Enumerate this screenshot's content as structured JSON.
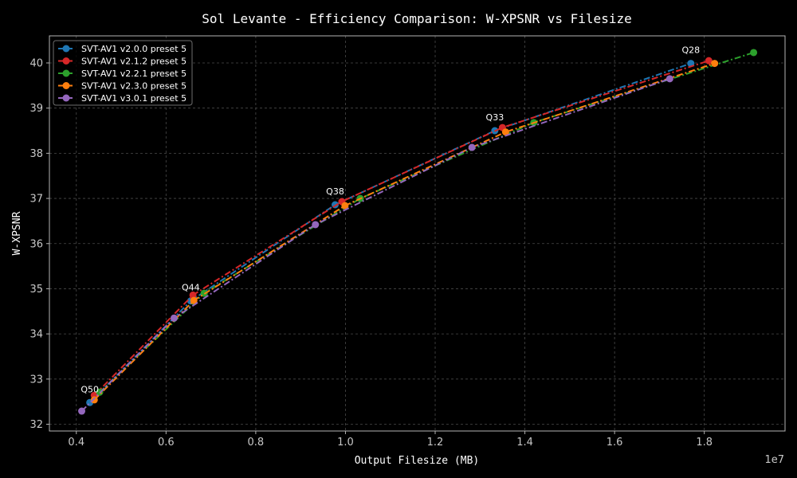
{
  "chart_data": {
    "type": "line",
    "title": "Sol Levante - Efficiency Comparison: W-XPSNR vs Filesize",
    "xlabel": "Output Filesize (MB)",
    "ylabel": "W-XPSNR",
    "x_offset_label": "1e7",
    "xlim": [
      3400000,
      19800000
    ],
    "ylim": [
      31.85,
      40.6
    ],
    "xticks": [
      4000000,
      6000000,
      8000000,
      10000000,
      12000000,
      14000000,
      16000000,
      18000000
    ],
    "xtick_labels": [
      "0.4",
      "0.6",
      "0.8",
      "1.0",
      "1.2",
      "1.4",
      "1.6",
      "1.8"
    ],
    "yticks": [
      32,
      33,
      34,
      35,
      36,
      37,
      38,
      39,
      40
    ],
    "ytick_labels": [
      "32",
      "33",
      "34",
      "35",
      "36",
      "37",
      "38",
      "39",
      "40"
    ],
    "grid": true,
    "legend_position": "top-left",
    "background_color": "#000000",
    "text_color": "#ffffff",
    "tick_color": "#c8c8c8",
    "grid_color": "#4a4a4a",
    "series": [
      {
        "name": "SVT-AV1 v2.0.0 preset 5",
        "color": "#1f77b4",
        "x": [
          4300000,
          6550000,
          9770000,
          13330000,
          17700000
        ],
        "y": [
          32.48,
          34.73,
          36.86,
          38.5,
          39.99
        ]
      },
      {
        "name": "SVT-AV1 v2.1.2 preset 5",
        "color": "#d62728",
        "x": [
          4400000,
          6600000,
          9920000,
          13500000,
          18100000
        ],
        "y": [
          32.64,
          34.86,
          36.93,
          38.57,
          40.05
        ]
      },
      {
        "name": "SVT-AV1 v2.2.1 preset 5",
        "color": "#2ca02c",
        "x": [
          4520000,
          6850000,
          10330000,
          14200000,
          19100000
        ],
        "y": [
          32.71,
          34.9,
          37.0,
          38.68,
          40.23
        ]
      },
      {
        "name": "SVT-AV1 v2.3.0 preset 5",
        "color": "#ff7f0e",
        "x": [
          4400000,
          6620000,
          9990000,
          13570000,
          18230000
        ],
        "y": [
          32.54,
          34.74,
          36.84,
          38.47,
          39.99
        ]
      },
      {
        "name": "SVT-AV1 v3.0.1 preset 5",
        "color": "#9467bd",
        "x": [
          4120000,
          6180000,
          9330000,
          12820000,
          17230000
        ],
        "y": [
          32.29,
          34.35,
          36.42,
          38.13,
          39.65
        ]
      }
    ],
    "annotations": [
      {
        "text": "Q50",
        "x": 4300000,
        "y": 32.48
      },
      {
        "text": "Q44",
        "x": 6550000,
        "y": 34.73
      },
      {
        "text": "Q38",
        "x": 9770000,
        "y": 36.86
      },
      {
        "text": "Q33",
        "x": 13330000,
        "y": 38.5
      },
      {
        "text": "Q28",
        "x": 17700000,
        "y": 39.99
      }
    ]
  }
}
